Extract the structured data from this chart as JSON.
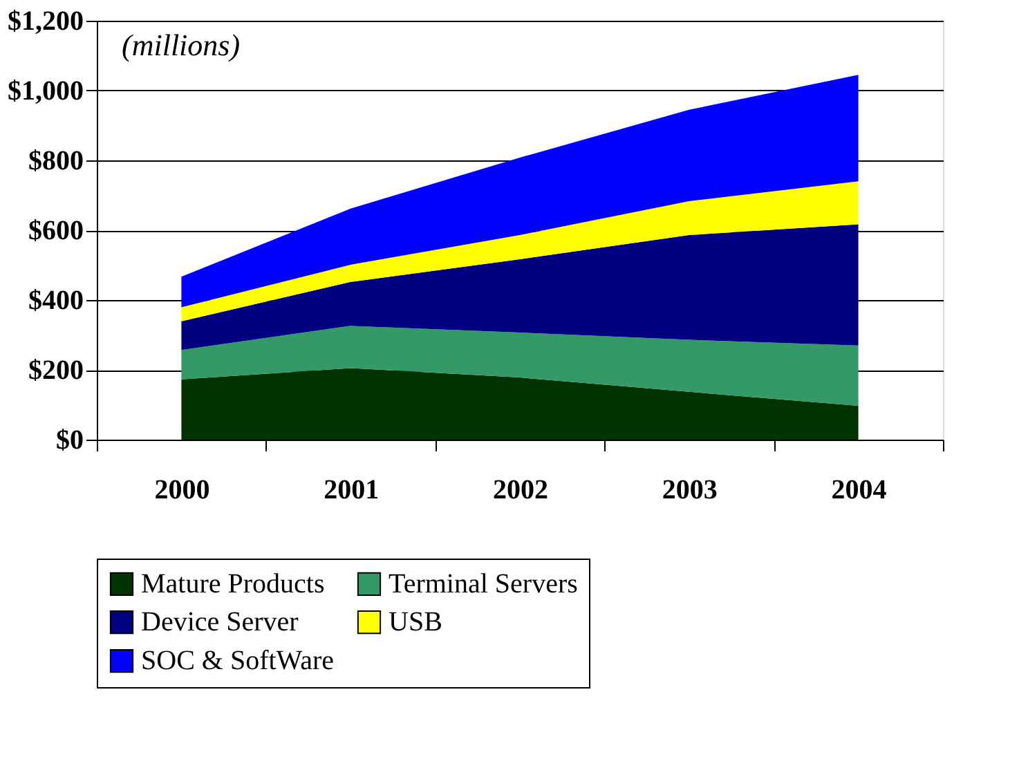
{
  "chart_data": {
    "type": "area",
    "stacked": true,
    "categories": [
      "2000",
      "2001",
      "2002",
      "2003",
      "2004"
    ],
    "series": [
      {
        "name": "Mature Products",
        "color": "#003300",
        "values": [
          173,
          205,
          178,
          137,
          97
        ]
      },
      {
        "name": "Terminal Servers",
        "color": "#339966",
        "values": [
          84,
          121,
          129,
          149,
          173
        ]
      },
      {
        "name": "Device Server",
        "color": "#000080",
        "values": [
          82,
          126,
          210,
          300,
          347
        ]
      },
      {
        "name": "USB",
        "color": "#ffff00",
        "values": [
          40,
          49,
          69,
          97,
          123
        ]
      },
      {
        "name": "SOC & SoftWare",
        "color": "#0000ff",
        "values": [
          88,
          161,
          222,
          262,
          305
        ]
      }
    ],
    "ylim": [
      0,
      1200
    ],
    "yticks": [
      {
        "value": 0,
        "label": "$0"
      },
      {
        "value": 200,
        "label": "$200"
      },
      {
        "value": 400,
        "label": "$400"
      },
      {
        "value": 600,
        "label": "$600"
      },
      {
        "value": 800,
        "label": "$800"
      },
      {
        "value": 1000,
        "label": "$1,000"
      },
      {
        "value": 1200,
        "label": "$1,200"
      }
    ],
    "grid": "y",
    "legend": "bottom",
    "annotations": [
      "(millions)"
    ]
  }
}
